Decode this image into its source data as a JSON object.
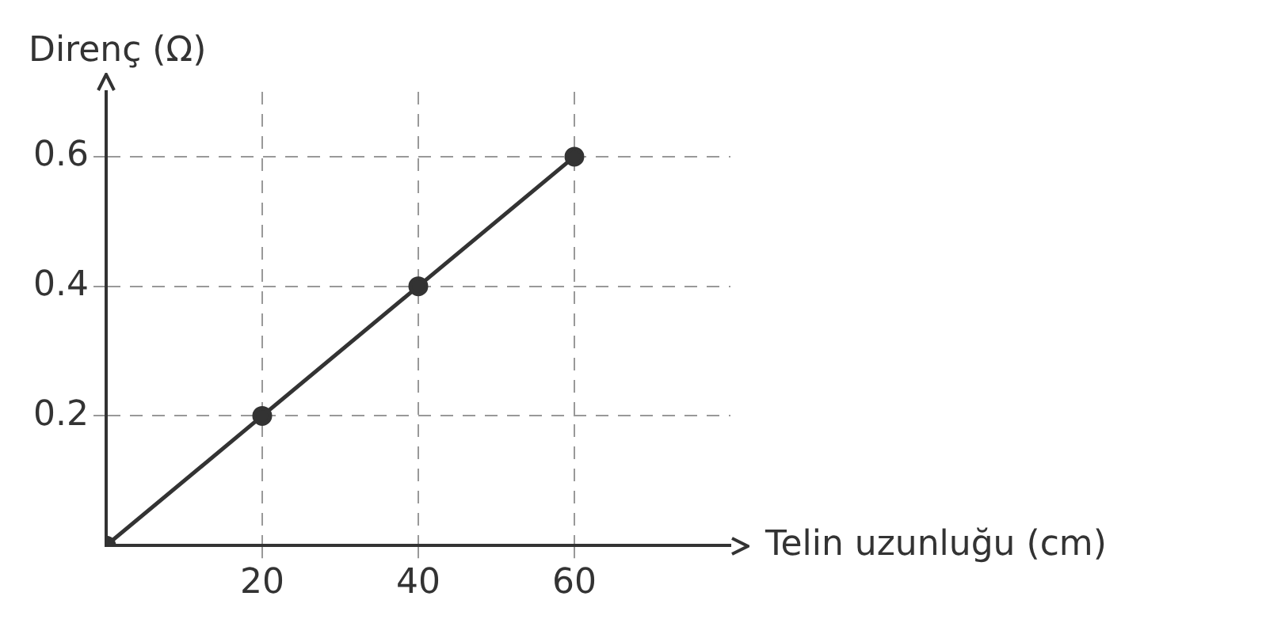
{
  "chart_data": {
    "type": "line",
    "xlabel": "Telin uzunluğu (cm)",
    "ylabel": "Direnç (Ω)",
    "x": [
      0,
      20,
      40,
      60
    ],
    "series": [
      {
        "color": "#333333",
        "values": [
          0,
          0.2,
          0.4,
          0.6
        ]
      }
    ],
    "xlim": [
      0,
      80
    ],
    "xticks": [
      20,
      40,
      60
    ],
    "ylim": [
      0,
      0.7
    ],
    "yticks": [
      0.2,
      0.4,
      0.6
    ],
    "grid": true,
    "marker": "circle",
    "line_style": "solid",
    "legend": false
  }
}
